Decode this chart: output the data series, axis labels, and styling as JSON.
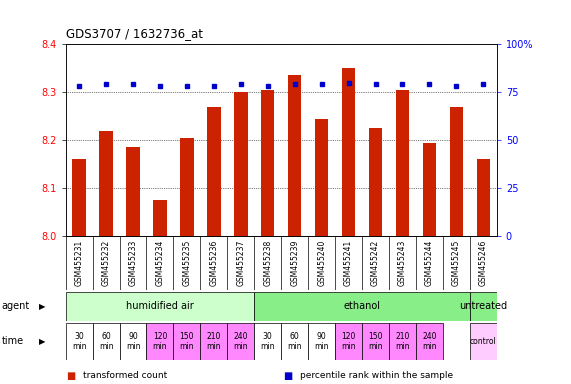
{
  "title": "GDS3707 / 1632736_at",
  "samples": [
    "GSM455231",
    "GSM455232",
    "GSM455233",
    "GSM455234",
    "GSM455235",
    "GSM455236",
    "GSM455237",
    "GSM455238",
    "GSM455239",
    "GSM455240",
    "GSM455241",
    "GSM455242",
    "GSM455243",
    "GSM455244",
    "GSM455245",
    "GSM455246"
  ],
  "bar_values": [
    8.16,
    8.22,
    8.185,
    8.075,
    8.205,
    8.27,
    8.3,
    8.305,
    8.335,
    8.245,
    8.35,
    8.225,
    8.305,
    8.195,
    8.27,
    8.16
  ],
  "percentile_values": [
    78,
    79,
    79,
    78,
    78,
    78,
    79,
    78,
    79,
    79,
    80,
    79,
    79,
    79,
    78,
    79
  ],
  "ylim_left": [
    8.0,
    8.4
  ],
  "ylim_right": [
    0,
    100
  ],
  "yticks_left": [
    8.0,
    8.1,
    8.2,
    8.3,
    8.4
  ],
  "yticks_right": [
    0,
    25,
    50,
    75,
    100
  ],
  "bar_color": "#CC2200",
  "dot_color": "#0000CC",
  "agent_groups": [
    {
      "label": "humidified air",
      "start": 0,
      "end": 7,
      "color": "#CCFFCC"
    },
    {
      "label": "ethanol",
      "start": 7,
      "end": 15,
      "color": "#88EE88"
    },
    {
      "label": "untreated",
      "start": 15,
      "end": 16,
      "color": "#88EE88"
    }
  ],
  "time_groups": [
    {
      "label": "30\nmin",
      "start": 0,
      "end": 1,
      "color": "#FFFFFF"
    },
    {
      "label": "60\nmin",
      "start": 1,
      "end": 2,
      "color": "#FFFFFF"
    },
    {
      "label": "90\nmin",
      "start": 2,
      "end": 3,
      "color": "#FFFFFF"
    },
    {
      "label": "120\nmin",
      "start": 3,
      "end": 4,
      "color": "#FF88FF"
    },
    {
      "label": "150\nmin",
      "start": 4,
      "end": 5,
      "color": "#FF88FF"
    },
    {
      "label": "210\nmin",
      "start": 5,
      "end": 6,
      "color": "#FF88FF"
    },
    {
      "label": "240\nmin",
      "start": 6,
      "end": 7,
      "color": "#FF88FF"
    },
    {
      "label": "30\nmin",
      "start": 7,
      "end": 8,
      "color": "#FFFFFF"
    },
    {
      "label": "60\nmin",
      "start": 8,
      "end": 9,
      "color": "#FFFFFF"
    },
    {
      "label": "90\nmin",
      "start": 9,
      "end": 10,
      "color": "#FFFFFF"
    },
    {
      "label": "120\nmin",
      "start": 10,
      "end": 11,
      "color": "#FF88FF"
    },
    {
      "label": "150\nmin",
      "start": 11,
      "end": 12,
      "color": "#FF88FF"
    },
    {
      "label": "210\nmin",
      "start": 12,
      "end": 13,
      "color": "#FF88FF"
    },
    {
      "label": "240\nmin",
      "start": 13,
      "end": 14,
      "color": "#FF88FF"
    },
    {
      "label": "control",
      "start": 15,
      "end": 16,
      "color": "#FFCCFF"
    }
  ],
  "legend_items": [
    {
      "color": "#CC2200",
      "label": "transformed count"
    },
    {
      "color": "#0000CC",
      "label": "percentile rank within the sample"
    }
  ],
  "sample_bg": "#CCCCCC",
  "fig_bg": "#FFFFFF"
}
